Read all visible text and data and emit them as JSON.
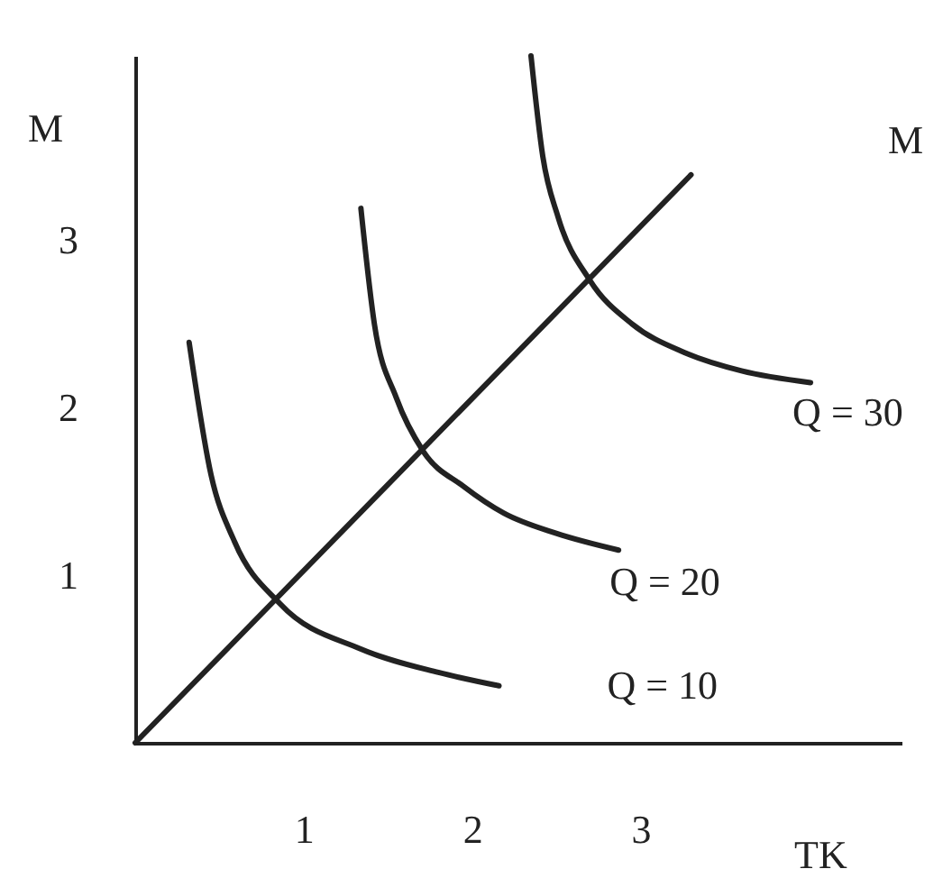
{
  "chart_data": {
    "type": "line",
    "xlabel": "TK",
    "ylabel": "M",
    "xlim": [
      0,
      4.55
    ],
    "ylim": [
      0,
      4.1
    ],
    "xticks": [
      1,
      2,
      3
    ],
    "yticks": [
      1,
      2,
      3
    ],
    "series": [
      {
        "name": "Q = 10",
        "color": "#222222",
        "x": [
          0.32,
          0.45,
          0.59,
          0.86,
          1.34,
          1.8,
          2.16
        ],
        "values": [
          2.39,
          1.6,
          1.2,
          0.83,
          0.56,
          0.42,
          0.34
        ]
      },
      {
        "name": "Q = 20",
        "color": "#222222",
        "x": [
          1.34,
          1.42,
          1.55,
          1.71,
          1.95,
          2.19,
          2.5,
          2.87
        ],
        "values": [
          3.19,
          2.5,
          2.06,
          1.74,
          1.53,
          1.37,
          1.25,
          1.15
        ]
      },
      {
        "name": "Q = 30",
        "color": "#222222",
        "x": [
          2.35,
          2.42,
          2.51,
          2.7,
          2.95,
          3.26,
          3.6,
          4.01
        ],
        "values": [
          4.1,
          3.5,
          3.14,
          2.76,
          2.5,
          2.33,
          2.22,
          2.15
        ]
      },
      {
        "color": "#222222",
        "x": [
          0,
          3.3
        ],
        "values": [
          0,
          3.39
        ]
      }
    ],
    "annotations": [
      "M"
    ]
  }
}
